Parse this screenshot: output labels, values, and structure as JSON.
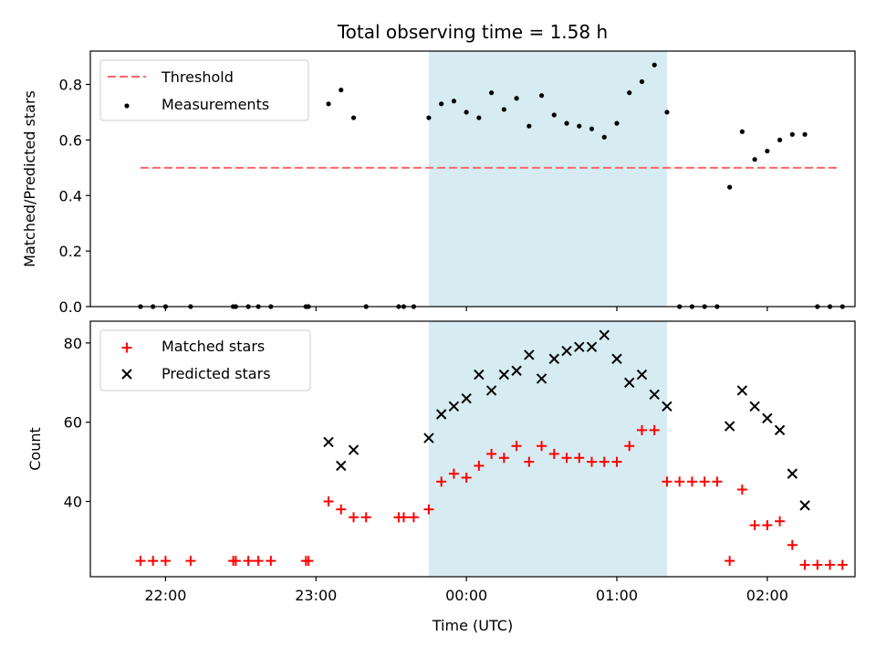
{
  "chart_data": [
    {
      "type": "scatter",
      "title": "Total observing time = 1.58 h",
      "xlabel": "",
      "ylabel": "Matched/Predicted stars",
      "ylim": [
        0,
        0.92
      ],
      "yticks": [
        "0.0",
        "0.2",
        "0.4",
        "0.6",
        "0.8"
      ],
      "ytick_values": [
        0,
        0.2,
        0.4,
        0.6,
        0.8
      ],
      "legend_position": "upper-left",
      "shaded_interval": [
        "23:45",
        "01:20"
      ],
      "shade_color": "#add8e6",
      "threshold": {
        "name": "Threshold",
        "value": 0.5,
        "x_range": [
          "21:50",
          "02:28"
        ],
        "color": "#ff6666"
      },
      "series": [
        {
          "name": "Measurements",
          "color": "#000000",
          "marker": "dot",
          "points": [
            [
              "21:50",
              0
            ],
            [
              "21:55",
              0
            ],
            [
              "22:00",
              0
            ],
            [
              "22:10",
              0
            ],
            [
              "22:27",
              0
            ],
            [
              "22:28",
              0
            ],
            [
              "22:33",
              0
            ],
            [
              "22:37",
              0
            ],
            [
              "22:42",
              0
            ],
            [
              "22:56",
              0
            ],
            [
              "22:57",
              0
            ],
            [
              "23:05",
              0.73
            ],
            [
              "23:10",
              0.78
            ],
            [
              "23:15",
              0.68
            ],
            [
              "23:20",
              0
            ],
            [
              "23:33",
              0
            ],
            [
              "23:35",
              0
            ],
            [
              "23:39",
              0
            ],
            [
              "23:45",
              0.68
            ],
            [
              "23:50",
              0.73
            ],
            [
              "23:55",
              0.74
            ],
            [
              "24:00",
              0.7
            ],
            [
              "24:05",
              0.68
            ],
            [
              "24:10",
              0.77
            ],
            [
              "24:15",
              0.71
            ],
            [
              "24:20",
              0.75
            ],
            [
              "24:25",
              0.65
            ],
            [
              "24:30",
              0.76
            ],
            [
              "24:35",
              0.69
            ],
            [
              "24:40",
              0.66
            ],
            [
              "24:45",
              0.65
            ],
            [
              "24:50",
              0.64
            ],
            [
              "24:55",
              0.61
            ],
            [
              "25:00",
              0.66
            ],
            [
              "25:05",
              0.77
            ],
            [
              "25:10",
              0.81
            ],
            [
              "25:15",
              0.87
            ],
            [
              "25:20",
              0.7
            ],
            [
              "25:25",
              0
            ],
            [
              "25:30",
              0
            ],
            [
              "25:35",
              0
            ],
            [
              "25:40",
              0
            ],
            [
              "25:45",
              0.43
            ],
            [
              "25:50",
              0.63
            ],
            [
              "25:55",
              0.53
            ],
            [
              "26:00",
              0.56
            ],
            [
              "26:05",
              0.6
            ],
            [
              "26:10",
              0.62
            ],
            [
              "26:15",
              0.62
            ],
            [
              "26:20",
              0
            ],
            [
              "26:25",
              0
            ],
            [
              "26:30",
              0
            ]
          ]
        }
      ]
    },
    {
      "type": "scatter",
      "title": "",
      "xlabel": "Time (UTC)",
      "ylabel": "Count",
      "ylim": [
        21,
        85.5
      ],
      "yticks": [
        "40",
        "60",
        "80"
      ],
      "ytick_values": [
        40,
        60,
        80
      ],
      "xlim": [
        "21:30",
        "02:35"
      ],
      "xticks": [
        "22:00",
        "23:00",
        "00:00",
        "01:00",
        "02:00"
      ],
      "legend_position": "upper-left",
      "shaded_interval": [
        "23:45",
        "01:20"
      ],
      "series": [
        {
          "name": "Matched stars",
          "color": "#ff0000",
          "marker": "plus",
          "points": [
            [
              "21:50",
              25
            ],
            [
              "21:55",
              25
            ],
            [
              "22:00",
              25
            ],
            [
              "22:10",
              25
            ],
            [
              "22:27",
              25
            ],
            [
              "22:28",
              25
            ],
            [
              "22:33",
              25
            ],
            [
              "22:37",
              25
            ],
            [
              "22:42",
              25
            ],
            [
              "22:56",
              25
            ],
            [
              "22:57",
              25
            ],
            [
              "23:05",
              40
            ],
            [
              "23:10",
              38
            ],
            [
              "23:15",
              36
            ],
            [
              "23:20",
              36
            ],
            [
              "23:33",
              36
            ],
            [
              "23:35",
              36
            ],
            [
              "23:39",
              36
            ],
            [
              "23:45",
              38
            ],
            [
              "23:50",
              45
            ],
            [
              "23:55",
              47
            ],
            [
              "24:00",
              46
            ],
            [
              "24:05",
              49
            ],
            [
              "24:10",
              52
            ],
            [
              "24:15",
              51
            ],
            [
              "24:20",
              54
            ],
            [
              "24:25",
              50
            ],
            [
              "24:30",
              54
            ],
            [
              "24:35",
              52
            ],
            [
              "24:40",
              51
            ],
            [
              "24:45",
              51
            ],
            [
              "24:50",
              50
            ],
            [
              "24:55",
              50
            ],
            [
              "25:00",
              50
            ],
            [
              "25:05",
              54
            ],
            [
              "25:10",
              58
            ],
            [
              "25:15",
              58
            ],
            [
              "25:20",
              45
            ],
            [
              "25:25",
              45
            ],
            [
              "25:30",
              45
            ],
            [
              "25:35",
              45
            ],
            [
              "25:40",
              45
            ],
            [
              "25:45",
              25
            ],
            [
              "25:50",
              43
            ],
            [
              "25:55",
              34
            ],
            [
              "26:00",
              34
            ],
            [
              "26:05",
              35
            ],
            [
              "26:10",
              29
            ],
            [
              "26:15",
              24
            ],
            [
              "26:20",
              24
            ],
            [
              "26:25",
              24
            ],
            [
              "26:30",
              24
            ]
          ]
        },
        {
          "name": "Predicted stars",
          "color": "#000000",
          "marker": "x",
          "points": [
            [
              "23:05",
              55
            ],
            [
              "23:10",
              49
            ],
            [
              "23:15",
              53
            ],
            [
              "23:45",
              56
            ],
            [
              "23:50",
              62
            ],
            [
              "23:55",
              64
            ],
            [
              "24:00",
              66
            ],
            [
              "24:05",
              72
            ],
            [
              "24:10",
              68
            ],
            [
              "24:15",
              72
            ],
            [
              "24:20",
              73
            ],
            [
              "24:25",
              77
            ],
            [
              "24:30",
              71
            ],
            [
              "24:35",
              76
            ],
            [
              "24:40",
              78
            ],
            [
              "24:45",
              79
            ],
            [
              "24:50",
              79
            ],
            [
              "24:55",
              82
            ],
            [
              "25:00",
              76
            ],
            [
              "25:05",
              70
            ],
            [
              "25:10",
              72
            ],
            [
              "25:15",
              67
            ],
            [
              "25:20",
              64
            ],
            [
              "25:45",
              59
            ],
            [
              "25:50",
              68
            ],
            [
              "25:55",
              64
            ],
            [
              "26:00",
              61
            ],
            [
              "26:05",
              58
            ],
            [
              "26:10",
              47
            ],
            [
              "26:15",
              39
            ]
          ]
        }
      ]
    }
  ]
}
